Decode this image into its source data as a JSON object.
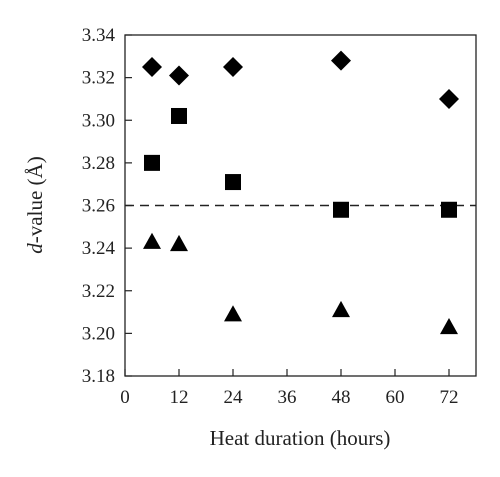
{
  "chart_data": {
    "type": "scatter",
    "title": "",
    "xlabel": "Heat duration (hours)",
    "ylabel_italic": "d",
    "ylabel_rest": "-value (Å)",
    "xlim": [
      0,
      78
    ],
    "ylim": [
      3.18,
      3.34
    ],
    "xticks": [
      "0",
      "12",
      "24",
      "36",
      "48",
      "60",
      "72"
    ],
    "yticks": [
      "3.18",
      "3.20",
      "3.22",
      "3.24",
      "3.26",
      "3.28",
      "3.30",
      "3.32",
      "3.34"
    ],
    "grid": false,
    "reference_line": {
      "y": 3.26,
      "style": "dashed"
    },
    "series": [
      {
        "marker": "diamond",
        "color": "#000000",
        "x": [
          6,
          12,
          24,
          48,
          72
        ],
        "y": [
          3.325,
          3.321,
          3.325,
          3.328,
          3.31
        ]
      },
      {
        "marker": "square",
        "color": "#000000",
        "x": [
          6,
          12,
          24,
          48,
          72
        ],
        "y": [
          3.28,
          3.302,
          3.271,
          3.258,
          3.258
        ]
      },
      {
        "marker": "triangle",
        "color": "#000000",
        "x": [
          6,
          12,
          24,
          48,
          72
        ],
        "y": [
          3.243,
          3.242,
          3.209,
          3.211,
          3.203
        ]
      }
    ]
  }
}
